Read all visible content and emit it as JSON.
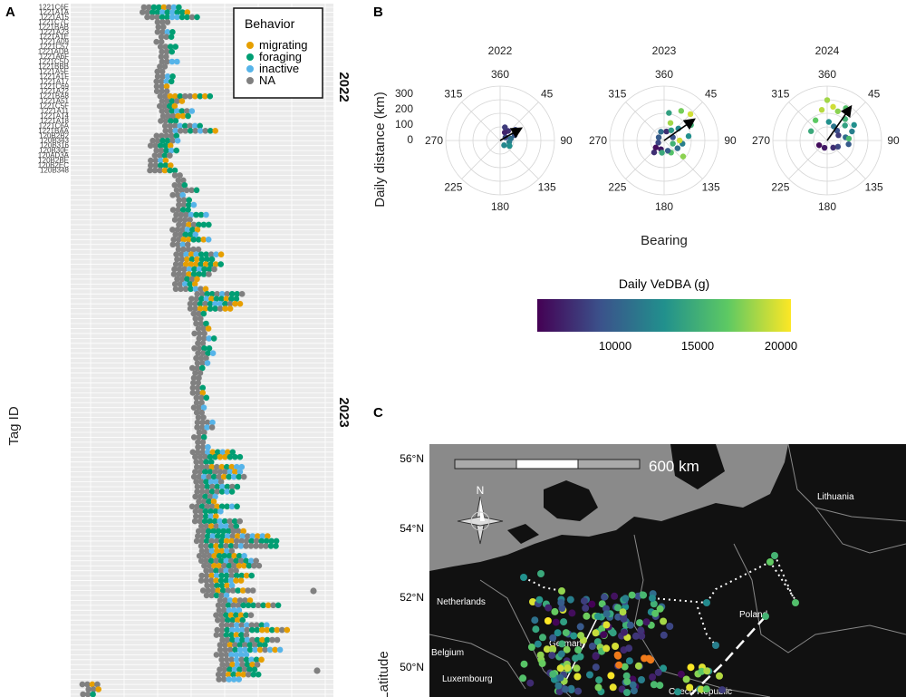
{
  "panel_labels": {
    "a": "A",
    "b": "B",
    "c": "C"
  },
  "chart_data": [
    {
      "type": "scatter",
      "id": "A",
      "title": "",
      "ylabel": "Tag ID",
      "legend": {
        "title": "Behavior",
        "placement": "top-right",
        "entries": [
          {
            "label": "migrating",
            "color": "#E69F00"
          },
          {
            "label": "foraging",
            "color": "#009E73"
          },
          {
            "label": "inactive",
            "color": "#56B4E9"
          },
          {
            "label": "NA",
            "color": "#808080"
          }
        ]
      },
      "groups": [
        {
          "label": "2022",
          "rows": 34
        },
        {
          "label": "2023",
          "rows": 106
        }
      ],
      "tag_ids": [
        "1221C6E",
        "1221A1A",
        "1221A15",
        "1221C7C",
        "1221BAB",
        "1221A23",
        "1221A1E",
        "1221A09",
        "1221C57",
        "1221ADB",
        "1221A6F",
        "1221C5D",
        "1221BBB",
        "1221A5E",
        "1221A1F",
        "1221A17",
        "1221C69",
        "1221A22",
        "1221BA8",
        "1221A51",
        "1221C5F",
        "1221A11",
        "1221A14",
        "1221A18",
        "1221C6A",
        "1221BAA",
        "120B2B2",
        "120B343",
        "120B316",
        "120B30E",
        "120AD3A",
        "120B2BE",
        "120B2EC",
        "120B348"
      ]
    },
    {
      "type": "scatter",
      "id": "B",
      "subtype": "polar",
      "xlabel": "Bearing",
      "ylabel": "Daily distance (km)",
      "facets": [
        "2022",
        "2023",
        "2024"
      ],
      "angle_ticks": [
        "360",
        "45",
        "90",
        "135",
        "180",
        "225",
        "270",
        "315"
      ],
      "radial_ticks": [
        "0",
        "100",
        "200",
        "300"
      ],
      "colorbar": {
        "title": "Daily VeDBA (g)",
        "ticks": [
          "10000",
          "15000",
          "20000"
        ],
        "range": [
          6000,
          20000
        ]
      },
      "mean_vectors": [
        {
          "year": "2022",
          "bearing": 60,
          "distance": 150
        },
        {
          "year": "2023",
          "bearing": 55,
          "distance": 230
        },
        {
          "year": "2024",
          "bearing": 35,
          "distance": 260
        }
      ],
      "points": {
        "2022": [
          [
            40,
            80,
            8000
          ],
          [
            55,
            120,
            9000
          ],
          [
            70,
            100,
            9500
          ],
          [
            80,
            70,
            11000
          ],
          [
            100,
            60,
            12000
          ],
          [
            120,
            70,
            13000
          ],
          [
            30,
            60,
            7500
          ],
          [
            20,
            90,
            8500
          ],
          [
            60,
            40,
            9000
          ],
          [
            140,
            40,
            12500
          ]
        ],
        "2023": [
          [
            10,
            180,
            14000
          ],
          [
            30,
            220,
            17000
          ],
          [
            45,
            240,
            19000
          ],
          [
            60,
            200,
            15000
          ],
          [
            80,
            160,
            13000
          ],
          [
            100,
            120,
            12000
          ],
          [
            120,
            100,
            11000
          ],
          [
            150,
            90,
            16000
          ],
          [
            200,
            60,
            7000
          ],
          [
            220,
            100,
            8000
          ],
          [
            250,
            40,
            9000
          ],
          [
            300,
            40,
            10000
          ],
          [
            340,
            60,
            11000
          ],
          [
            20,
            120,
            18000
          ],
          [
            50,
            120,
            12500
          ],
          [
            70,
            60,
            9500
          ],
          [
            110,
            60,
            15000
          ],
          [
            130,
            160,
            17500
          ],
          [
            15,
            60,
            8000
          ],
          [
            35,
            80,
            13500
          ],
          [
            90,
            100,
            19000
          ],
          [
            160,
            70,
            10000
          ],
          [
            190,
            80,
            14500
          ],
          [
            230,
            70,
            6500
          ]
        ],
        "2024": [
          [
            0,
            260,
            18000
          ],
          [
            10,
            220,
            19000
          ],
          [
            20,
            200,
            17500
          ],
          [
            30,
            240,
            16000
          ],
          [
            40,
            180,
            15000
          ],
          [
            50,
            150,
            14000
          ],
          [
            60,
            200,
            13000
          ],
          [
            70,
            170,
            12000
          ],
          [
            80,
            120,
            11000
          ],
          [
            100,
            140,
            10000
          ],
          [
            120,
            80,
            9000
          ],
          [
            140,
            60,
            8000
          ],
          [
            200,
            50,
            7000
          ],
          [
            240,
            60,
            6500
          ],
          [
            300,
            120,
            14500
          ],
          [
            330,
            150,
            16500
          ],
          [
            350,
            200,
            18500
          ],
          [
            5,
            120,
            13000
          ],
          [
            25,
            100,
            11500
          ],
          [
            45,
            90,
            9500
          ],
          [
            65,
            80,
            8500
          ],
          [
            85,
            140,
            15500
          ]
        ]
      }
    },
    {
      "type": "scatter",
      "id": "C",
      "subtype": "map",
      "ylabel": "Latitude",
      "lat_ticks": [
        "56°N",
        "54°N",
        "52°N",
        "50°N"
      ],
      "scale_label": "600 km",
      "compass_label": "N",
      "place_labels": [
        "Lithuania",
        "Netherlands",
        "Poland",
        "Germany",
        "Belgium",
        "Luxembourg",
        "Czech Republic"
      ]
    }
  ],
  "year_labels": {
    "y2022": "2022",
    "y2023": "2023"
  }
}
